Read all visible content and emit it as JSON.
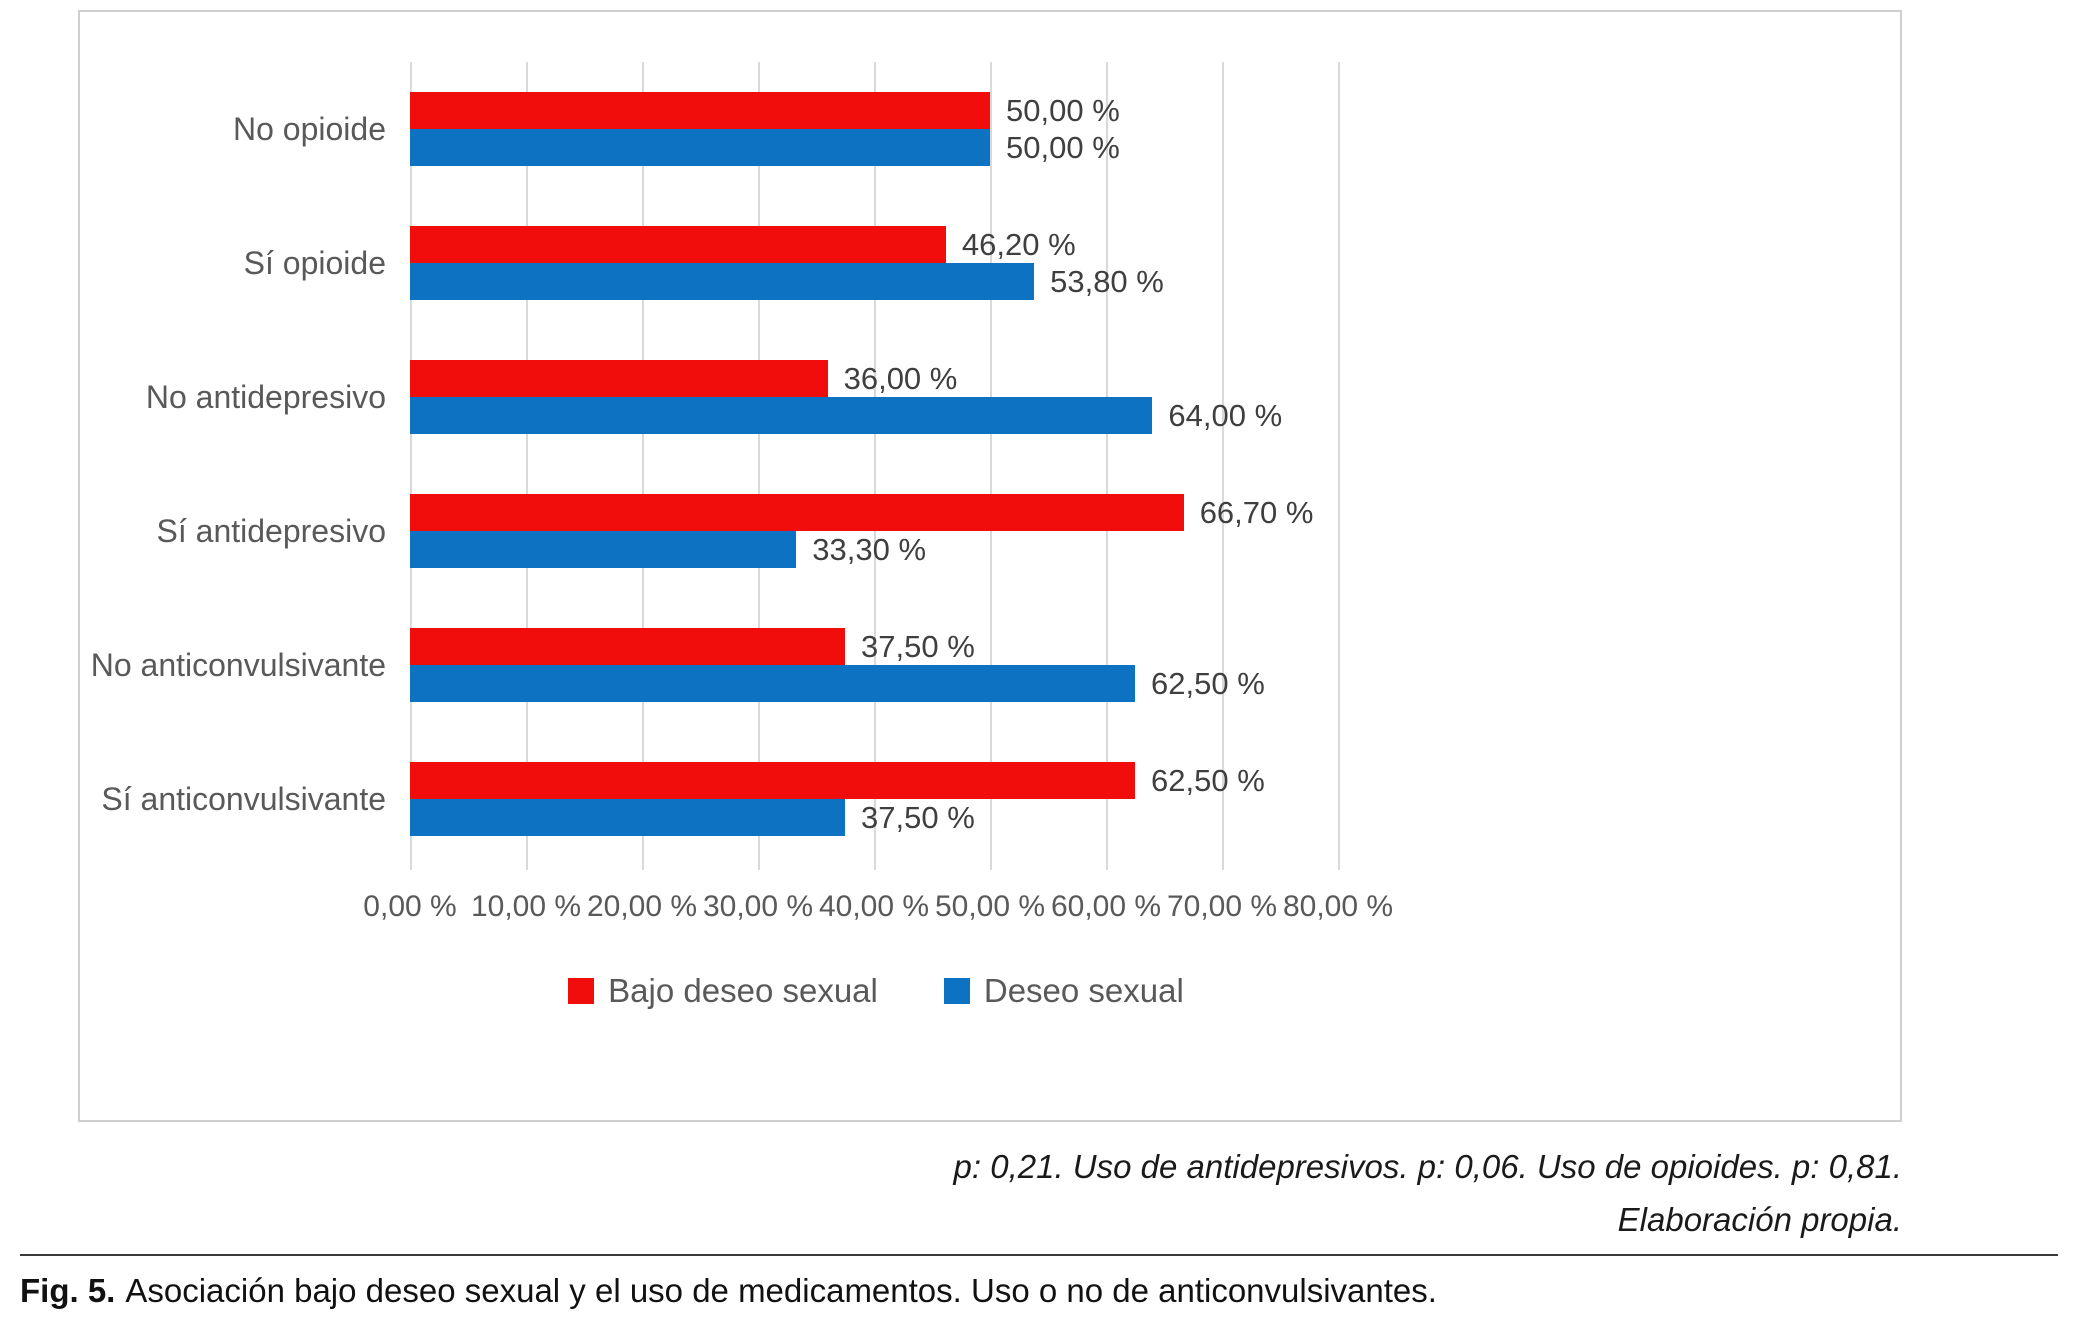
{
  "chart_data": {
    "type": "bar",
    "orientation": "horizontal",
    "categories": [
      "No opioide",
      "Sí opioide",
      "No antidepresivo",
      "Sí antidepresivo",
      "No anticonvulsivante",
      "Sí anticonvulsivante"
    ],
    "series": [
      {
        "key": "bajo-deseo-sexual",
        "name": "Bajo deseo sexual",
        "color": "#f20d0d",
        "values": [
          50.0,
          46.2,
          36.0,
          66.7,
          37.5,
          62.5
        ],
        "labels": [
          "50,00 %",
          "46,20 %",
          "36,00 %",
          "66,70 %",
          "37,50 %",
          "62,50 %"
        ]
      },
      {
        "key": "deseo-sexual",
        "name": "Deseo sexual",
        "color": "#0e72c2",
        "values": [
          50.0,
          53.8,
          64.0,
          33.3,
          62.5,
          37.5
        ],
        "labels": [
          "50,00 %",
          "53,80 %",
          "64,00 %",
          "33,30 %",
          "62,50 %",
          "37,50 %"
        ]
      }
    ],
    "x_axis": {
      "min": 0,
      "max": 80,
      "ticks": [
        "0,00 %",
        "10,00 %",
        "20,00 %",
        "30,00 %",
        "40,00 %",
        "50,00 %",
        "60,00 %",
        "70,00 %",
        "80,00 %"
      ]
    },
    "grid": true,
    "legend_position": "bottom"
  },
  "notes": {
    "line1": "p: 0,21. Uso de antidepresivos. p: 0,06. Uso de opioides. p: 0,81.",
    "line2": "Elaboración propia."
  },
  "caption": {
    "fig_label": "Fig. 5.",
    "text": "Asociación bajo deseo sexual y el uso de medicamentos. Uso o no de anticonvulsivantes."
  }
}
